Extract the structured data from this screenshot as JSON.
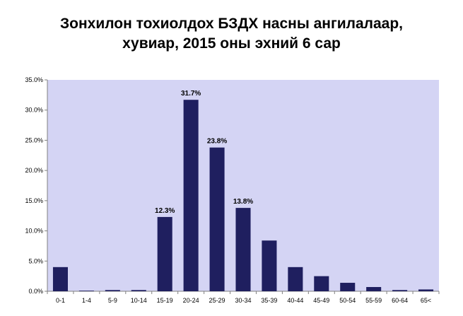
{
  "chart_data": {
    "type": "bar",
    "title_lines": [
      "Зонхилон тохиолдох БЗДХ насны ангилалаар,",
      "хувиар, 2015 оны эхний 6 сар"
    ],
    "categories": [
      "0-1",
      "1-4",
      "5-9",
      "10-14",
      "15-19",
      "20-24",
      "25-29",
      "30-34",
      "35-39",
      "40-44",
      "45-49",
      "50-54",
      "55-59",
      "60-64",
      "65<"
    ],
    "values": [
      4.0,
      0.1,
      0.2,
      0.2,
      12.3,
      31.7,
      23.8,
      13.8,
      8.4,
      4.0,
      2.5,
      1.4,
      0.7,
      0.2,
      0.3
    ],
    "data_labels": {
      "4": "12.3%",
      "5": "31.7%",
      "6": "23.8%",
      "7": "13.8%"
    },
    "ylim": [
      0,
      35
    ],
    "yticks": [
      "0.0%",
      "5.0%",
      "10.0%",
      "15.0%",
      "20.0%",
      "25.0%",
      "30.0%",
      "35.0%"
    ],
    "bar_color": "#1f1f5f",
    "plot_background": "#d4d4f4",
    "grid": false,
    "legend": false
  }
}
